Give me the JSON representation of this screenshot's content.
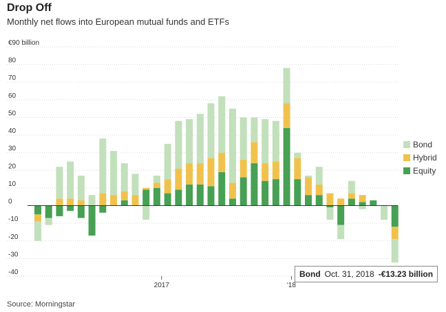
{
  "title": "Drop Off",
  "subtitle": "Monthly net flows into European mutual funds and ETFs",
  "source": "Source: Morningstar",
  "tooltip": {
    "series": "Bond",
    "date": "Oct. 31, 2018",
    "value": "-€13.23 billion"
  },
  "colors": {
    "Bond": "#c2e0bb",
    "Hybrid": "#f0c24d",
    "Equity": "#47a053"
  },
  "chart_data": {
    "type": "bar",
    "stacked": true,
    "ylim": [
      -40,
      90
    ],
    "yticks": [
      -40,
      -30,
      -20,
      -10,
      0,
      10,
      20,
      30,
      40,
      50,
      60,
      70,
      80,
      90
    ],
    "ytick_labels": [
      "-40",
      "-30",
      "-20",
      "-10",
      "0",
      "10",
      "20",
      "30",
      "40",
      "50",
      "60",
      "70",
      "80",
      "€90 billion"
    ],
    "xtick_labels": [
      {
        "label": "2017",
        "index": 12
      },
      {
        "label": "'18",
        "index": 24
      }
    ],
    "legend_position": "right",
    "grid": true,
    "categories": [
      "2016-01",
      "2016-02",
      "2016-03",
      "2016-04",
      "2016-05",
      "2016-06",
      "2016-07",
      "2016-08",
      "2016-09",
      "2016-10",
      "2016-11",
      "2016-12",
      "2017-01",
      "2017-02",
      "2017-03",
      "2017-04",
      "2017-05",
      "2017-06",
      "2017-07",
      "2017-08",
      "2017-09",
      "2017-10",
      "2017-11",
      "2017-12",
      "2018-01",
      "2018-02",
      "2018-03",
      "2018-04",
      "2018-05",
      "2018-06",
      "2018-07",
      "2018-08",
      "2018-09",
      "2018-10"
    ],
    "series": [
      {
        "name": "Equity",
        "values": [
          -5,
          -7,
          -6,
          -3,
          -7,
          -17,
          -4,
          0,
          3,
          0,
          9,
          10,
          7,
          9,
          12,
          12,
          11,
          19,
          4,
          16,
          24,
          14,
          15,
          44,
          15,
          6,
          6,
          -1,
          -11,
          4,
          2,
          3,
          0,
          -12
        ]
      },
      {
        "name": "Hybrid",
        "values": [
          -4,
          0,
          4,
          4,
          3,
          0,
          7,
          6,
          5,
          6,
          1,
          3,
          8,
          12,
          12,
          12,
          16,
          11,
          9,
          10,
          12,
          10,
          10,
          14,
          12,
          10,
          6,
          7,
          4,
          3,
          4,
          0,
          0,
          -7
        ]
      },
      {
        "name": "Bond",
        "values": [
          -11,
          -4,
          18,
          21,
          14,
          6,
          31,
          25,
          16,
          12,
          -8,
          4,
          20,
          27,
          25,
          28,
          31,
          32,
          42,
          24,
          14,
          25,
          23,
          20,
          3,
          1,
          10,
          -7,
          -8,
          7,
          -2,
          0,
          -8,
          -13.23
        ]
      }
    ]
  }
}
